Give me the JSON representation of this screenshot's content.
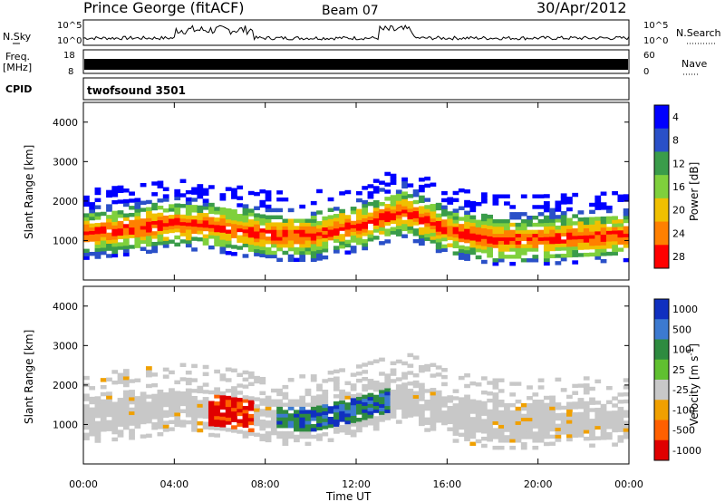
{
  "header": {
    "station": "Prince George (fitACF)",
    "beam": "Beam 07",
    "date": "30/Apr/2012"
  },
  "side_labels": {
    "nsky": "N.Sky",
    "nsearch": "N.Search",
    "freq_top": "Freq.",
    "freq_unit": "[MHz]",
    "nave": "Nave",
    "cpid": "CPID"
  },
  "scales": {
    "nsky_top": "10^5",
    "nsky_bottom": "10^0",
    "nsearch_top": "10^5",
    "nsearch_bottom": "10^0",
    "freq_top": "18",
    "freq_bottom": "8",
    "nave_top": "60",
    "nave_bottom": "0"
  },
  "cpid_text": "twofsound 3501",
  "chart_data": [
    {
      "type": "heatmap",
      "title": "",
      "xlabel": "Time UT",
      "ylabel": "Slant Range [km]",
      "x_ticks": [
        "00:00",
        "04:00",
        "08:00",
        "12:00",
        "16:00",
        "20:00",
        "00:00"
      ],
      "y_ticks": [
        "1000",
        "2000",
        "3000",
        "4000"
      ],
      "ylim": [
        0,
        4500
      ],
      "colorbar": {
        "label": "Power [dB]",
        "ticks": [
          "4",
          "8",
          "12",
          "16",
          "20",
          "24",
          "28"
        ],
        "colors": [
          "#0000ff",
          "#2a50c8",
          "#3a9c4a",
          "#7fd03c",
          "#f0c000",
          "#ff8000",
          "#ff0000"
        ]
      },
      "echo_band": [
        {
          "time_h": 0,
          "center_km": 1150
        },
        {
          "time_h": 2,
          "center_km": 1250
        },
        {
          "time_h": 4,
          "center_km": 1400
        },
        {
          "time_h": 6,
          "center_km": 1300
        },
        {
          "time_h": 8,
          "center_km": 1100
        },
        {
          "time_h": 10,
          "center_km": 1100
        },
        {
          "time_h": 12,
          "center_km": 1350
        },
        {
          "time_h": 14,
          "center_km": 1700
        },
        {
          "time_h": 16,
          "center_km": 1200
        },
        {
          "time_h": 18,
          "center_km": 1000
        },
        {
          "time_h": 20,
          "center_km": 1000
        },
        {
          "time_h": 22,
          "center_km": 1050
        },
        {
          "time_h": 24,
          "center_km": 1100
        }
      ]
    },
    {
      "type": "heatmap",
      "title": "",
      "xlabel": "Time UT",
      "ylabel": "Slant Range [km]",
      "x_ticks": [
        "00:00",
        "04:00",
        "08:00",
        "12:00",
        "16:00",
        "20:00",
        "00:00"
      ],
      "y_ticks": [
        "1000",
        "2000",
        "3000",
        "4000"
      ],
      "ylim": [
        0,
        4500
      ],
      "colorbar": {
        "label": "Velocity [m s",
        "label_sup": "-1",
        "label_end": "]",
        "ticks": [
          "1000",
          "500",
          "100",
          "25",
          "-25",
          "-100",
          "-500",
          "-1000"
        ],
        "colors": [
          "#1030c0",
          "#3c7ad0",
          "#2e8b40",
          "#60c030",
          "#c8c8c8",
          "#f0a000",
          "#ff6000",
          "#e00000"
        ]
      },
      "velocity_segments": [
        {
          "start_h": 0,
          "end_h": 5.5,
          "velocity_class": "-25 to 25"
        },
        {
          "start_h": 5.5,
          "end_h": 7.5,
          "velocity_class": "-500 to -1000"
        },
        {
          "start_h": 8.5,
          "end_h": 13.5,
          "velocity_class": "100 to 500"
        },
        {
          "start_h": 14,
          "end_h": 24,
          "velocity_class": "-25 to 25"
        }
      ]
    }
  ]
}
